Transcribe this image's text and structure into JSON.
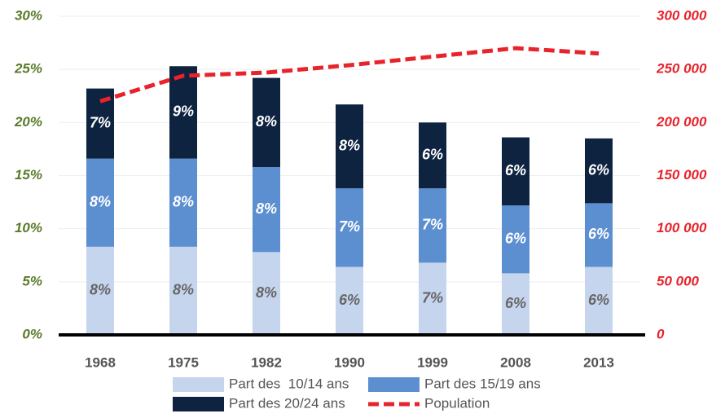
{
  "chart_data": {
    "type": "bar",
    "stacked": true,
    "categories": [
      "1968",
      "1975",
      "1982",
      "1990",
      "1999",
      "2008",
      "2013"
    ],
    "series": [
      {
        "name": "Part des  10/14 ans",
        "color": "#c5d5ee",
        "values": [
          8.3,
          8.3,
          7.8,
          6.4,
          6.8,
          5.8,
          6.4
        ],
        "value_labels": [
          "8%",
          "8%",
          "8%",
          "6%",
          "7%",
          "6%",
          "6%"
        ]
      },
      {
        "name": "Part des 15/19 ans",
        "color": "#5b8fd0",
        "values": [
          8.3,
          8.3,
          8.0,
          7.4,
          7.0,
          6.4,
          6.0
        ],
        "value_labels": [
          "8%",
          "8%",
          "8%",
          "7%",
          "7%",
          "6%",
          "6%"
        ]
      },
      {
        "name": "Part des 20/24 ans",
        "color": "#0e2340",
        "values": [
          6.6,
          8.7,
          8.4,
          7.9,
          6.2,
          6.4,
          6.1
        ],
        "value_labels": [
          "7%",
          "9%",
          "8%",
          "8%",
          "6%",
          "6%",
          "6%"
        ]
      },
      {
        "name": "Population",
        "color": "#e8232b",
        "type": "line",
        "axis": "y2",
        "values": [
          220000,
          244000,
          247000,
          254000,
          262000,
          270000,
          265000
        ]
      }
    ],
    "ylim": [
      0,
      30
    ],
    "yticks": [
      {
        "value": 0,
        "label": "0%"
      },
      {
        "value": 5,
        "label": "5%"
      },
      {
        "value": 10,
        "label": "10%"
      },
      {
        "value": 15,
        "label": "15%"
      },
      {
        "value": 20,
        "label": "20%"
      },
      {
        "value": 25,
        "label": "25%"
      },
      {
        "value": 30,
        "label": "30%"
      }
    ],
    "y2lim": [
      0,
      300000
    ],
    "y2ticks": [
      0,
      {
        "value": 50000,
        "label": "50 000"
      },
      {
        "value": 100000,
        "label": "100 000"
      },
      {
        "value": 150000,
        "label": "150 000"
      },
      {
        "value": 200000,
        "label": "200 000"
      },
      {
        "value": 250000,
        "label": "250 000"
      },
      {
        "value": 300000,
        "label": "300 000"
      }
    ],
    "grid": true,
    "legend": "bottom"
  }
}
